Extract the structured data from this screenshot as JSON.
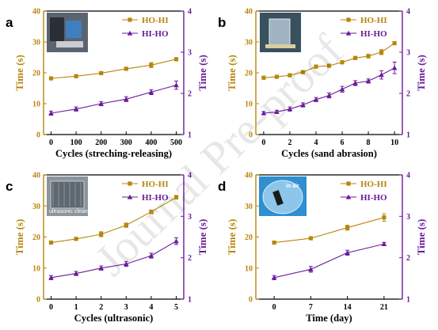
{
  "watermark": "Journal Pre-proof",
  "chart_data": [
    {
      "type": "line",
      "panel": "a",
      "xlabel": "Cycles (streching-releasing)",
      "ylabel_left": "Time (s)",
      "ylabel_right": "Time (s)",
      "x": [
        0,
        100,
        200,
        300,
        400,
        500
      ],
      "x_ticks": [
        0,
        100,
        200,
        300,
        400,
        500
      ],
      "xlim": [
        -30,
        530
      ],
      "ylim_left": [
        0,
        40
      ],
      "ylim_right": [
        1,
        4
      ],
      "yticks_left": [
        0,
        10,
        20,
        30,
        40
      ],
      "yticks_right": [
        1,
        2,
        3,
        4
      ],
      "legend_position": "top-right",
      "inset_label": "",
      "series": [
        {
          "name": "HO-HI",
          "axis": "left",
          "color": "#b8860b",
          "values": [
            18.2,
            18.9,
            19.9,
            21.3,
            22.5,
            24.4
          ],
          "errors": [
            0.3,
            0.3,
            0.3,
            0.5,
            0.8,
            0.5
          ]
        },
        {
          "name": "HI-HO",
          "axis": "right",
          "color": "#6a1b9a",
          "values": [
            1.52,
            1.62,
            1.75,
            1.86,
            2.03,
            2.2
          ],
          "errors": [
            0.05,
            0.05,
            0.05,
            0.06,
            0.06,
            0.1
          ]
        }
      ]
    },
    {
      "type": "line",
      "panel": "b",
      "xlabel": "Cycles (sand abrasion)",
      "ylabel_left": "Time (s)",
      "ylabel_right": "Time (s)",
      "x": [
        0,
        1,
        2,
        3,
        4,
        5,
        6,
        7,
        8,
        9,
        10
      ],
      "x_ticks": [
        0,
        2,
        4,
        6,
        8,
        10
      ],
      "xlim": [
        -0.6,
        10.6
      ],
      "ylim_left": [
        0,
        40
      ],
      "ylim_right": [
        1,
        4
      ],
      "yticks_left": [
        0,
        10,
        20,
        30,
        40
      ],
      "yticks_right": [
        1,
        2,
        3,
        4
      ],
      "legend_position": "top-right",
      "inset_label": "",
      "series": [
        {
          "name": "HO-HI",
          "axis": "left",
          "color": "#b8860b",
          "values": [
            18.4,
            18.7,
            19.2,
            20.2,
            22.0,
            22.3,
            23.4,
            24.8,
            25.4,
            26.7,
            29.6
          ],
          "errors": [
            0.3,
            0.3,
            0.3,
            0.4,
            0.5,
            0.4,
            0.5,
            0.5,
            0.6,
            0.8,
            0.4
          ]
        },
        {
          "name": "HI-HO",
          "axis": "right",
          "color": "#6a1b9a",
          "values": [
            1.52,
            1.55,
            1.62,
            1.72,
            1.85,
            1.95,
            2.1,
            2.25,
            2.3,
            2.45,
            2.62
          ],
          "errors": [
            0.04,
            0.04,
            0.05,
            0.05,
            0.05,
            0.06,
            0.07,
            0.06,
            0.05,
            0.1,
            0.14
          ]
        }
      ]
    },
    {
      "type": "line",
      "panel": "c",
      "xlabel": "Cycles (ultrasonic)",
      "ylabel_left": "Time (s)",
      "ylabel_right": "Time (s)",
      "x": [
        0,
        1,
        2,
        3,
        4,
        5
      ],
      "x_ticks": [
        0,
        1,
        2,
        3,
        4,
        5
      ],
      "xlim": [
        -0.3,
        5.3
      ],
      "ylim_left": [
        0,
        40
      ],
      "ylim_right": [
        1,
        4
      ],
      "yticks_left": [
        0,
        10,
        20,
        30,
        40
      ],
      "yticks_right": [
        1,
        2,
        3,
        4
      ],
      "legend_position": "top-right",
      "inset_label": "ultrasonic cleaner",
      "series": [
        {
          "name": "HO-HI",
          "axis": "left",
          "color": "#b8860b",
          "values": [
            18.2,
            19.4,
            20.9,
            23.8,
            28.1,
            32.8
          ],
          "errors": [
            0.3,
            0.4,
            0.8,
            0.7,
            0.6,
            0.6
          ]
        },
        {
          "name": "HI-HO",
          "axis": "right",
          "color": "#6a1b9a",
          "values": [
            1.52,
            1.62,
            1.75,
            1.85,
            2.05,
            2.4
          ],
          "errors": [
            0.05,
            0.05,
            0.05,
            0.06,
            0.06,
            0.08
          ]
        }
      ]
    },
    {
      "type": "line",
      "panel": "d",
      "xlabel": "Time (day)",
      "ylabel_left": "Time (s)",
      "ylabel_right": "Time (s)",
      "x": [
        0,
        7,
        14,
        21
      ],
      "x_ticks": [
        0,
        7,
        14,
        21
      ],
      "xlim": [
        -3.5,
        24.5
      ],
      "ylim_left": [
        0,
        40
      ],
      "ylim_right": [
        1,
        4
      ],
      "yticks_left": [
        0,
        10,
        20,
        30,
        40
      ],
      "yticks_right": [
        1,
        2,
        3,
        4
      ],
      "legend_position": "top-right",
      "inset_label": "in air",
      "series": [
        {
          "name": "HO-HI",
          "axis": "left",
          "color": "#b8860b",
          "values": [
            18.2,
            19.6,
            23.0,
            26.3
          ],
          "errors": [
            0.3,
            0.4,
            0.8,
            1.2
          ]
        },
        {
          "name": "HI-HO",
          "axis": "right",
          "color": "#6a1b9a",
          "values": [
            1.52,
            1.72,
            2.12,
            2.33
          ],
          "errors": [
            0.05,
            0.07,
            0.06,
            0.04
          ]
        }
      ]
    }
  ]
}
